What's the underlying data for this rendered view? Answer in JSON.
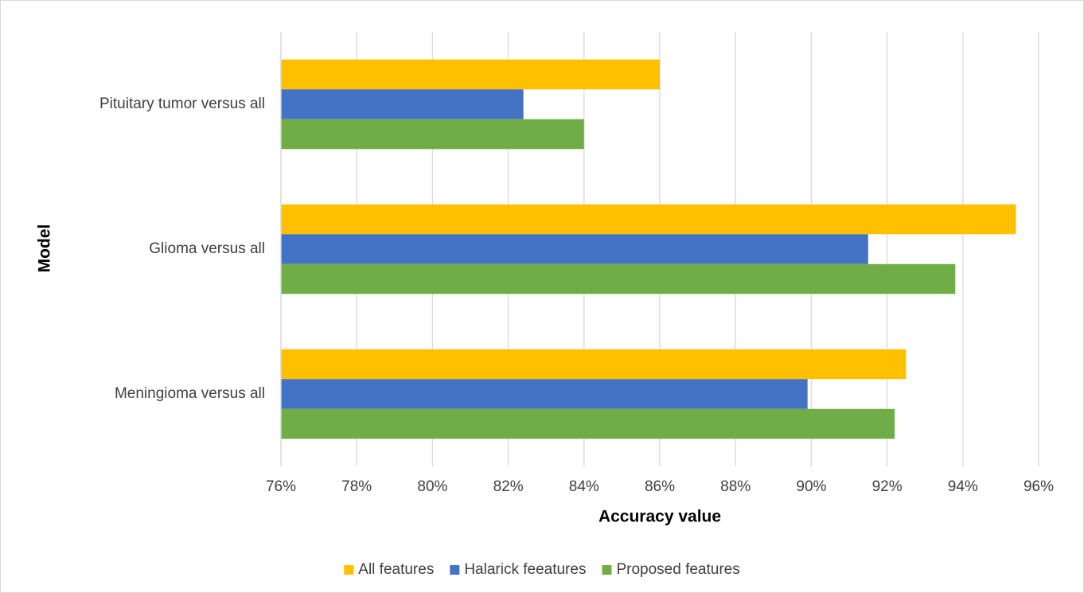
{
  "chart_data": {
    "type": "bar",
    "orientation": "horizontal",
    "x_label": "Accuracy value",
    "y_label": "Model",
    "categories": [
      "Pituitary tumor versus all",
      "Glioma versus all",
      "Meningioma versus all"
    ],
    "series": [
      {
        "name": "All features",
        "color": "#ffc000",
        "values": [
          86.0,
          95.4,
          92.5
        ]
      },
      {
        "name": "Halarick feeatures",
        "color": "#4472c4",
        "values": [
          82.4,
          91.5,
          89.9
        ]
      },
      {
        "name": "Proposed features",
        "color": "#70ad47",
        "values": [
          84.0,
          93.8,
          92.2
        ]
      }
    ],
    "xlim": [
      76,
      96
    ],
    "xticks": [
      {
        "value": 76,
        "label": "76%"
      },
      {
        "value": 78,
        "label": "78%"
      },
      {
        "value": 80,
        "label": "80%"
      },
      {
        "value": 82,
        "label": "82%"
      },
      {
        "value": 84,
        "label": "84%"
      },
      {
        "value": 86,
        "label": "86%"
      },
      {
        "value": 88,
        "label": "88%"
      },
      {
        "value": 90,
        "label": "90%"
      },
      {
        "value": 92,
        "label": "92%"
      },
      {
        "value": 94,
        "label": "94%"
      },
      {
        "value": 96,
        "label": "96%"
      }
    ],
    "grid": true,
    "legend": "bottom"
  }
}
